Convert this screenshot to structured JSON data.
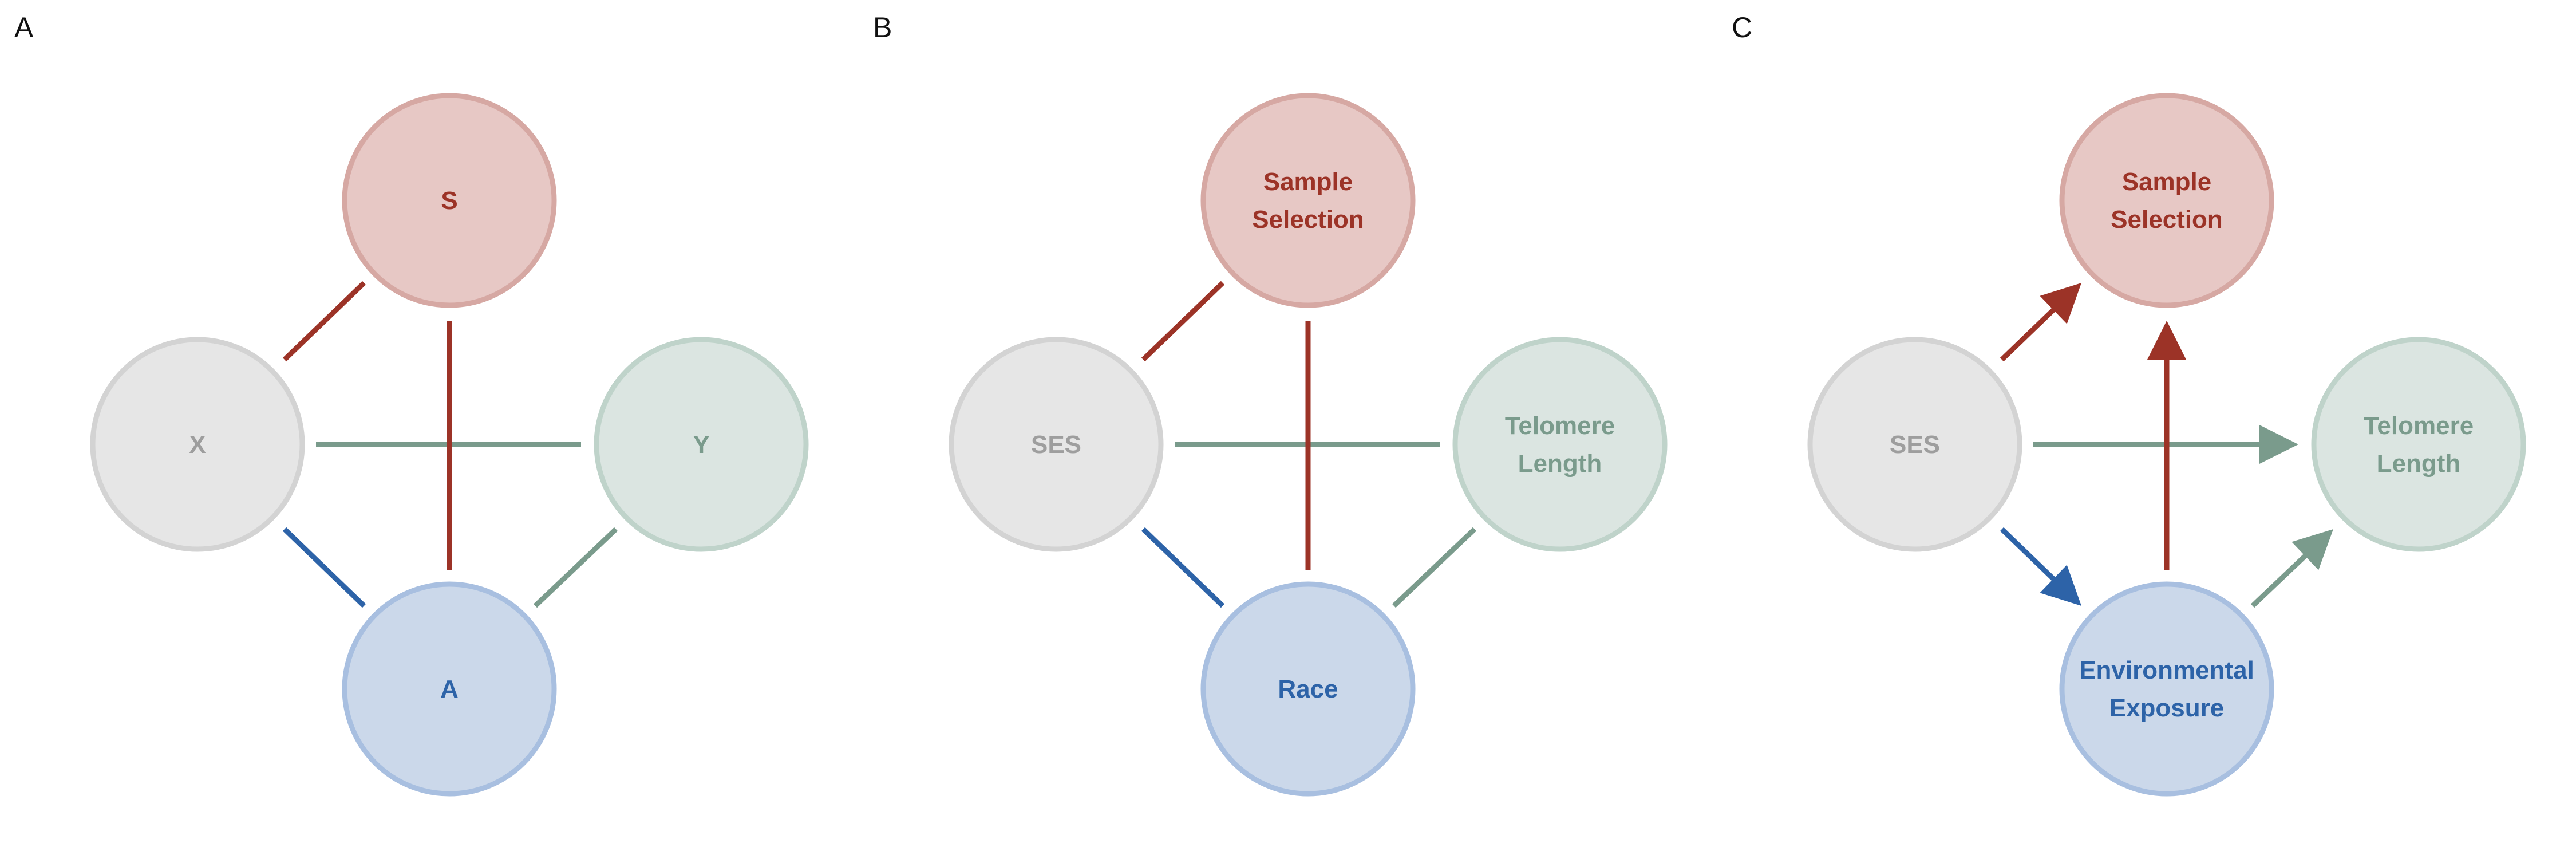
{
  "colors": {
    "red_edge": "#9c3327",
    "red_fill": "#e7c8c5",
    "red_stroke": "#d6a8a3",
    "red_text": "#9c3327",
    "gray_fill": "#e6e6e6",
    "gray_stroke": "#d3d3d3",
    "gray_text": "#9e9e9e",
    "green_edge": "#7a9b8c",
    "green_fill": "#dbe5e1",
    "green_stroke": "#bfd3ca",
    "green_text": "#7a9b8c",
    "blue_edge": "#2d63a8",
    "blue_fill": "#cbd8ea",
    "blue_stroke": "#a8bfe0",
    "blue_text": "#2d63a8"
  },
  "panels": [
    {
      "label": "A",
      "directed": false,
      "nodes": {
        "top": [
          "S"
        ],
        "left": [
          "X"
        ],
        "right": [
          "Y"
        ],
        "bottom": [
          "A"
        ]
      }
    },
    {
      "label": "B",
      "directed": false,
      "nodes": {
        "top": [
          "Sample",
          "Selection"
        ],
        "left": [
          "SES"
        ],
        "right": [
          "Telomere",
          "Length"
        ],
        "bottom": [
          "Race"
        ]
      }
    },
    {
      "label": "C",
      "directed": true,
      "nodes": {
        "top": [
          "Sample",
          "Selection"
        ],
        "left": [
          "SES"
        ],
        "right": [
          "Telomere",
          "Length"
        ],
        "bottom": [
          "Environmental",
          "Exposure"
        ]
      }
    }
  ]
}
